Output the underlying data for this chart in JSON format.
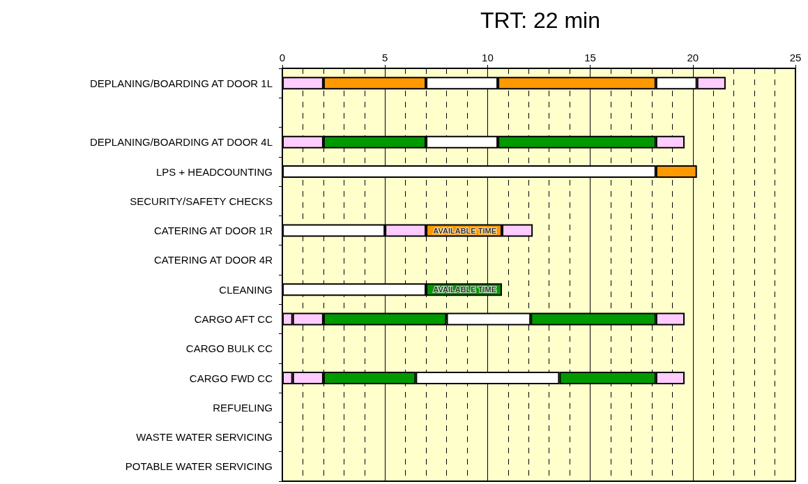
{
  "chart_data": {
    "type": "bar",
    "title": "TRT: 22 min",
    "orientation": "horizontal",
    "stacked": true,
    "categories": [
      "DEPLANING/BOARDING AT DOOR 1L",
      null,
      "DEPLANING/BOARDING AT DOOR 4L",
      "LPS + HEADCOUNTING",
      "SECURITY/SAFETY CHECKS",
      "CATERING AT DOOR 1R",
      "CATERING AT DOOR 4R",
      "CLEANING",
      "CARGO AFT CC",
      "CARGO BULK CC",
      "CARGO FWD CC",
      "REFUELING",
      "WASTE WATER SERVICING",
      "POTABLE WATER SERVICING"
    ],
    "series": [
      {
        "values": [
          2,
          null,
          2,
          18.2,
          null,
          5,
          null,
          7,
          0.5,
          null,
          0.5,
          null,
          null,
          null
        ],
        "colors": [
          "#ffccff",
          null,
          "#ffccff",
          "#ffffff",
          null,
          "#ffffff",
          null,
          "#ffffff",
          "#ffccff",
          null,
          "#ffccff",
          null,
          null,
          null
        ]
      },
      {
        "values": [
          5,
          null,
          5,
          2,
          null,
          2,
          null,
          3.7,
          1.5,
          null,
          1.5,
          null,
          null,
          null
        ],
        "colors": [
          "#ff9900",
          null,
          "#009900",
          "#ff9900",
          null,
          "#ffccff",
          null,
          "#009900",
          "#ffccff",
          null,
          "#ffccff",
          null,
          null,
          null
        ]
      },
      {
        "values": [
          3.5,
          null,
          3.5,
          null,
          null,
          3.7,
          null,
          null,
          6,
          null,
          4.5,
          null,
          null,
          null
        ],
        "colors": [
          "#ffffff",
          null,
          "#ffffff",
          null,
          null,
          "#ff9900",
          null,
          null,
          "#009900",
          null,
          "#009900",
          null,
          null,
          null
        ]
      },
      {
        "values": [
          7.7,
          null,
          7.7,
          null,
          null,
          1.5,
          null,
          null,
          4.1,
          null,
          7,
          null,
          null,
          null
        ],
        "colors": [
          "#ff9900",
          null,
          "#009900",
          null,
          null,
          "#ffccff",
          null,
          null,
          "#ffffff",
          null,
          "#ffffff",
          null,
          null,
          null
        ]
      },
      {
        "values": [
          2,
          null,
          1.4,
          null,
          null,
          null,
          null,
          null,
          6.1,
          null,
          4.7,
          null,
          null,
          null
        ],
        "colors": [
          "#ffffff",
          null,
          "#ffccff",
          null,
          null,
          null,
          null,
          null,
          "#009900",
          null,
          "#009900",
          null,
          null,
          null
        ]
      },
      {
        "values": [
          1.4,
          null,
          null,
          null,
          null,
          null,
          null,
          null,
          1.4,
          null,
          1.4,
          null,
          null,
          null
        ],
        "colors": [
          "#ffccff",
          null,
          null,
          null,
          null,
          null,
          null,
          null,
          "#ffccff",
          null,
          "#ffccff",
          null,
          null,
          null
        ]
      }
    ],
    "xlim": [
      0,
      25
    ],
    "xticks": [
      0,
      5,
      10,
      15,
      20,
      25
    ],
    "grid": "x",
    "annotations": [
      {
        "text": "AVAILABLE TIME",
        "x": 10.7,
        "y": "CATERING AT DOOR 1R"
      },
      {
        "text": "AVAILABLE TIME",
        "x": 10.7,
        "y": "CLEANING"
      }
    ]
  }
}
